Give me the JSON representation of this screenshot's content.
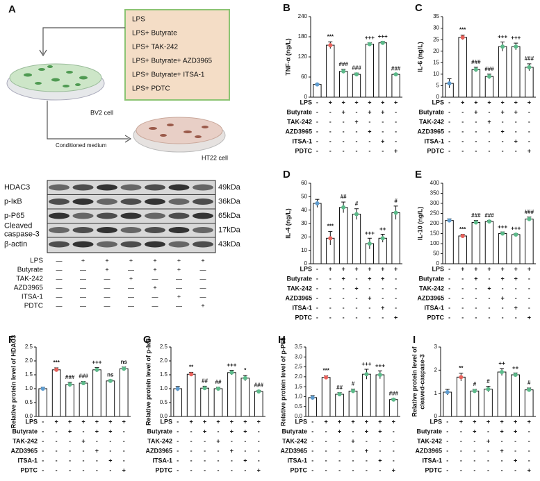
{
  "diagram": {
    "panel": "A",
    "treatments": [
      "LPS",
      "LPS+ Butyrate",
      "LPS+ TAK-242",
      "LPS+ Butyrate+ AZD3965",
      "LPS+ Butyrate+ ITSA-1",
      "LPS+ PDTC"
    ],
    "cell1": "BV2 cell",
    "arrow_label": "Conditioned medium",
    "cell2": "HT22 cell"
  },
  "blot": {
    "proteins": [
      {
        "name": "HDAC3",
        "size": "49kDa"
      },
      {
        "name": "p-IκB",
        "size": "36kDa"
      },
      {
        "name": "p-P65",
        "size": "65kDa"
      },
      {
        "name": "Cleaved caspase-3",
        "size": "17kDa"
      },
      {
        "name": "β-actin",
        "size": "43kDa"
      }
    ],
    "treatment_table": [
      {
        "label": "LPS",
        "signs": [
          "—",
          "+",
          "+",
          "+",
          "+",
          "+",
          "+"
        ]
      },
      {
        "label": "Butyrate",
        "signs": [
          "—",
          "—",
          "+",
          "—",
          "+",
          "+",
          "—"
        ]
      },
      {
        "label": "TAK-242",
        "signs": [
          "—",
          "—",
          "—",
          "+",
          "—",
          "—",
          "—"
        ]
      },
      {
        "label": "AZD3965",
        "signs": [
          "—",
          "—",
          "—",
          "—",
          "+",
          "—",
          "—"
        ]
      },
      {
        "label": "ITSA-1",
        "signs": [
          "—",
          "—",
          "—",
          "—",
          "—",
          "+",
          "—"
        ]
      },
      {
        "label": "PDTC",
        "signs": [
          "—",
          "—",
          "—",
          "—",
          "—",
          "—",
          "+"
        ]
      }
    ]
  },
  "treatment_table": [
    {
      "label": "LPS",
      "signs": [
        "-",
        "+",
        "+",
        "+",
        "+",
        "+",
        "+"
      ]
    },
    {
      "label": "Butyrate",
      "signs": [
        "-",
        "-",
        "+",
        "-",
        "+",
        "+",
        "-"
      ]
    },
    {
      "label": "TAK-242",
      "signs": [
        "-",
        "-",
        "-",
        "+",
        "-",
        "-",
        "-"
      ]
    },
    {
      "label": "AZD3965",
      "signs": [
        "-",
        "-",
        "-",
        "-",
        "+",
        "-",
        "-"
      ]
    },
    {
      "label": "ITSA-1",
      "signs": [
        "-",
        "-",
        "-",
        "-",
        "-",
        "+",
        "-"
      ]
    },
    {
      "label": "PDTC",
      "signs": [
        "-",
        "-",
        "-",
        "-",
        "-",
        "-",
        "+"
      ]
    }
  ],
  "group_colors": [
    "#5f9ccf",
    "#e8625c",
    "#5cba8a",
    "#5cba8a",
    "#5cba8a",
    "#5cba8a",
    "#5cba8a"
  ],
  "chart_data": [
    {
      "type": "bar",
      "panel": "B",
      "ylabel": [
        "TNF-α (ng/L)"
      ],
      "values": [
        38,
        155,
        77,
        68,
        158,
        162,
        68
      ],
      "errors": [
        2,
        10,
        6,
        4,
        4,
        4,
        2
      ],
      "significance": [
        null,
        "***",
        "###",
        "###",
        "+++",
        "+++",
        "###"
      ],
      "ylim": [
        0,
        240
      ],
      "yticks": [
        0,
        60,
        120,
        180,
        240
      ]
    },
    {
      "type": "bar",
      "panel": "C",
      "ylabel": [
        "IL-6 (ng/L)"
      ],
      "values": [
        6,
        26,
        12,
        9,
        22,
        22,
        13
      ],
      "errors": [
        2,
        1,
        1,
        1,
        2,
        1.5,
        1.5
      ],
      "significance": [
        null,
        "***",
        "###",
        "###",
        "+++",
        "+++",
        "###"
      ],
      "ylim": [
        0,
        35
      ],
      "yticks": [
        0,
        5,
        10,
        15,
        20,
        25,
        30,
        35
      ]
    },
    {
      "type": "bar",
      "panel": "D",
      "ylabel": [
        "IL-4 (ng/L)"
      ],
      "values": [
        45,
        19,
        42,
        37,
        15,
        19,
        38
      ],
      "errors": [
        3,
        5,
        4,
        4,
        4,
        3,
        5
      ],
      "significance": [
        null,
        "***",
        "##",
        "#",
        "+++",
        "++",
        "#"
      ],
      "ylim": [
        0,
        60
      ],
      "yticks": [
        0,
        10,
        20,
        30,
        40,
        50,
        60
      ]
    },
    {
      "type": "bar",
      "panel": "E",
      "ylabel": [
        "IL-10 (ng/L)"
      ],
      "values": [
        215,
        138,
        205,
        210,
        150,
        145,
        222
      ],
      "errors": [
        8,
        8,
        10,
        5,
        8,
        5,
        10
      ],
      "significance": [
        null,
        "***",
        "###",
        "###",
        "+++",
        "+++",
        "###"
      ],
      "ylim": [
        0,
        400
      ],
      "yticks": [
        0,
        50,
        100,
        150,
        200,
        250,
        300,
        350,
        400
      ]
    },
    {
      "type": "bar",
      "panel": "F",
      "ylabel": [
        "Relative protein level of HDAC3"
      ],
      "values": [
        1.0,
        1.68,
        1.15,
        1.2,
        1.68,
        1.28,
        1.72
      ],
      "errors": [
        0.05,
        0.07,
        0.08,
        0.06,
        0.08,
        0.04,
        0.06
      ],
      "significance": [
        null,
        "***",
        "###",
        "###",
        "+++",
        "ns",
        "ns"
      ],
      "ylim": [
        0,
        2.5
      ],
      "yticks": [
        {
          "value": 0,
          "label": "0.0"
        },
        0.5,
        {
          "value": 1,
          "label": "1.0"
        },
        1.5,
        {
          "value": 2,
          "label": "2.0"
        },
        2.5
      ]
    },
    {
      "type": "bar",
      "panel": "G",
      "ylabel": [
        "Relative protein level of p-IκB"
      ],
      "values": [
        1.0,
        1.52,
        1.02,
        1.0,
        1.58,
        1.38,
        0.9
      ],
      "errors": [
        0.08,
        0.07,
        0.07,
        0.05,
        0.08,
        0.1,
        0.04
      ],
      "significance": [
        null,
        "**",
        "##",
        "##",
        "+++",
        "*",
        "###"
      ],
      "ylim": [
        0,
        2.5
      ],
      "yticks": [
        {
          "value": 0,
          "label": "0.0"
        },
        0.5,
        {
          "value": 1,
          "label": "1.0"
        },
        1.5,
        {
          "value": 2,
          "label": "2.0"
        },
        2.5
      ]
    },
    {
      "type": "bar",
      "panel": "H",
      "ylabel": [
        "Relative protein level of p-P65"
      ],
      "values": [
        0.95,
        1.97,
        1.12,
        1.28,
        2.13,
        2.1,
        0.85
      ],
      "errors": [
        0.1,
        0.08,
        0.08,
        0.1,
        0.25,
        0.2,
        0.05
      ],
      "significance": [
        null,
        "***",
        "##",
        "#",
        "+++",
        "+++",
        "###"
      ],
      "ylim": [
        0,
        3.5
      ],
      "yticks": [
        {
          "value": 0,
          "label": "0.0"
        },
        0.5,
        {
          "value": 1,
          "label": "1.0"
        },
        1.5,
        {
          "value": 2,
          "label": "2.0"
        },
        2.5,
        {
          "value": 3,
          "label": "3.0"
        },
        3.5
      ]
    },
    {
      "type": "bar",
      "panel": "I",
      "ylabel": [
        "Relative protein level of",
        "cleaved-caspase-3"
      ],
      "values": [
        1.05,
        1.7,
        1.1,
        1.18,
        1.92,
        1.8,
        1.15
      ],
      "errors": [
        0.12,
        0.17,
        0.07,
        0.12,
        0.15,
        0.08,
        0.08
      ],
      "significance": [
        null,
        "**",
        "#",
        "#",
        "++",
        "++",
        "#"
      ],
      "ylim": [
        0,
        3
      ],
      "yticks": [
        0,
        1,
        2,
        3
      ]
    }
  ]
}
